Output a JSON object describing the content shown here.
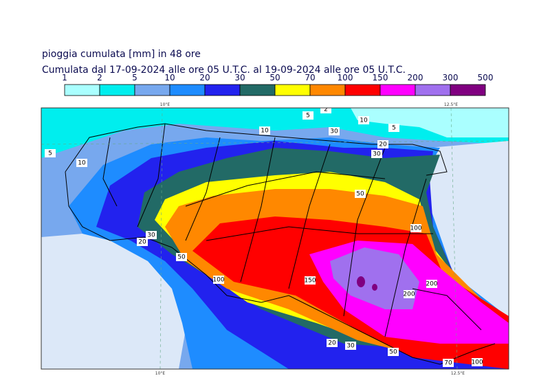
{
  "header": {
    "title": "pioggia cumulata [mm] in 48 ore",
    "subtitle": "Cumulata dal 17-09-2024 alle ore 05 U.T.C. al 19-09-2024 alle ore 05 U.T.C."
  },
  "colorbar": {
    "levels": [
      1,
      2,
      5,
      10,
      20,
      30,
      50,
      70,
      100,
      150,
      200,
      300,
      500
    ],
    "colors": [
      "#aaffff",
      "#00eeee",
      "#77a8ee",
      "#1e8cff",
      "#2222ee",
      "#226a66",
      "#ffff00",
      "#ff8800",
      "#ff0000",
      "#ff00ff",
      "#a070ee",
      "#800080"
    ]
  },
  "meridians": {
    "top": [
      "10°E",
      "12.5°E"
    ],
    "bottom": [
      "10°E",
      "12.5°E"
    ]
  },
  "contour_labels": [
    5,
    10,
    2,
    30,
    10,
    5,
    20,
    30,
    5,
    10,
    50,
    100,
    200,
    200,
    20,
    30,
    50,
    100,
    150,
    20,
    30,
    50,
    70,
    100
  ]
}
